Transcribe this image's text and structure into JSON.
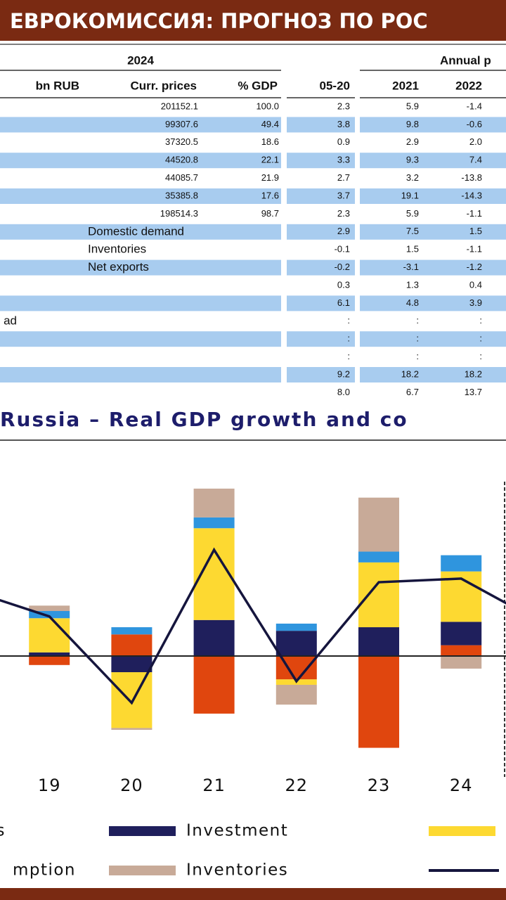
{
  "header": {
    "title": "ЕВРОКОМИССИЯ: ПРОГНОЗ ПО РОС"
  },
  "table": {
    "group_headers": [
      "2024",
      "Annual p"
    ],
    "columns": [
      "bn RUB",
      "Curr. prices",
      "% GDP",
      "05-20",
      "2021",
      "2022"
    ],
    "rows": [
      {
        "curr": "201152.1",
        "pct": "100.0",
        "growth": [
          "2.3",
          "5.9",
          "-1.4"
        ]
      },
      {
        "curr": "99307.6",
        "pct": "49.4",
        "growth": [
          "3.8",
          "9.8",
          "-0.6"
        ]
      },
      {
        "curr": "37320.5",
        "pct": "18.6",
        "growth": [
          "0.9",
          "2.9",
          "2.0"
        ]
      },
      {
        "curr": "44520.8",
        "pct": "22.1",
        "growth": [
          "3.3",
          "9.3",
          "7.4"
        ]
      },
      {
        "curr": "44085.7",
        "pct": "21.9",
        "growth": [
          "2.7",
          "3.2",
          "-13.8"
        ]
      },
      {
        "curr": "35385.8",
        "pct": "17.6",
        "growth": [
          "3.7",
          "19.1",
          "-14.3"
        ]
      },
      {
        "curr": "198514.3",
        "pct": "98.7",
        "growth": [
          "2.3",
          "5.9",
          "-1.1"
        ]
      },
      {
        "label": "Domestic demand",
        "growth": [
          "2.9",
          "7.5",
          "1.5"
        ]
      },
      {
        "label": "Inventories",
        "growth": [
          "-0.1",
          "1.5",
          "-1.1"
        ]
      },
      {
        "label": "Net exports",
        "growth": [
          "-0.2",
          "-3.1",
          "-1.2"
        ]
      },
      {
        "growth": [
          "0.3",
          "1.3",
          "0.4"
        ]
      },
      {
        "growth": [
          "6.1",
          "4.8",
          "3.9"
        ]
      },
      {
        "label": "ad",
        "growth": [
          ":",
          ":",
          ":"
        ]
      },
      {
        "growth": [
          ":",
          ":",
          ":"
        ]
      },
      {
        "growth": [
          ":",
          ":",
          ":"
        ]
      },
      {
        "growth": [
          "9.2",
          "18.2",
          "18.2"
        ]
      },
      {
        "growth": [
          "8.0",
          "6.7",
          "13.7"
        ]
      }
    ]
  },
  "chart_data": {
    "type": "bar",
    "stacked": true,
    "title": "Russia – Real GDP growth and co",
    "categories": [
      null,
      "19",
      "20",
      "21",
      "22",
      "23",
      "24",
      null
    ],
    "series": [
      {
        "name": "s",
        "color": "#e0460e",
        "values": [
          null,
          -0.5,
          1.2,
          -3.2,
          -1.3,
          -5.1,
          0.6,
          null
        ]
      },
      {
        "name": "Investment",
        "color": "#1f1f5c",
        "values": [
          null,
          0.2,
          -0.9,
          2.0,
          1.4,
          1.6,
          1.3,
          null
        ]
      },
      {
        "color": "#fdd931",
        "values": [
          null,
          1.9,
          -3.1,
          5.1,
          -0.3,
          3.6,
          2.8,
          null
        ]
      },
      {
        "name": "mption",
        "color": "#2f95de",
        "values": [
          null,
          0.4,
          0.4,
          0.6,
          0.4,
          0.6,
          0.9,
          null
        ]
      },
      {
        "name": "Inventories",
        "color": "#c8aa98",
        "values": [
          null,
          0.3,
          -0.1,
          1.6,
          -1.1,
          3.0,
          -0.7,
          null
        ]
      }
    ],
    "line": {
      "color": "#15153d",
      "values": [
        3.7,
        2.2,
        -2.6,
        5.9,
        -1.4,
        4.1,
        4.3,
        1.8
      ]
    }
  }
}
